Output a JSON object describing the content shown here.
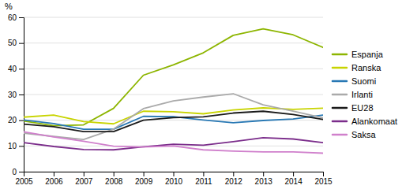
{
  "chart_data": {
    "type": "line",
    "y_label": "%",
    "x": [
      2005,
      2006,
      2007,
      2008,
      2009,
      2010,
      2011,
      2012,
      2013,
      2014,
      2015
    ],
    "series": [
      {
        "name": "Espanja",
        "color": "#8db500",
        "values": [
          19.7,
          17.9,
          18.2,
          24.6,
          37.5,
          41.5,
          46.2,
          53.0,
          55.5,
          53.2,
          48.3
        ]
      },
      {
        "name": "Ranska",
        "color": "#c8d400",
        "values": [
          21.2,
          22.0,
          19.5,
          18.6,
          23.5,
          23.3,
          22.5,
          24.0,
          24.8,
          24.2,
          24.7
        ]
      },
      {
        "name": "Suomi",
        "color": "#2878b4",
        "values": [
          20.1,
          18.7,
          16.5,
          16.5,
          21.5,
          21.4,
          20.1,
          19.0,
          19.9,
          20.5,
          22.0
        ]
      },
      {
        "name": "Irlanti",
        "color": "#aaaaaa",
        "values": [
          15.0,
          13.7,
          12.5,
          16.5,
          24.5,
          27.5,
          29.0,
          30.3,
          26.0,
          23.5,
          20.9
        ]
      },
      {
        "name": "EU28",
        "color": "#1a1a1a",
        "values": [
          18.5,
          17.5,
          15.6,
          15.6,
          20.0,
          21.0,
          21.3,
          22.8,
          23.5,
          22.2,
          20.3
        ]
      },
      {
        "name": "Alankomaat",
        "color": "#7b2d8b",
        "values": [
          11.3,
          9.8,
          8.6,
          8.5,
          9.7,
          10.7,
          10.3,
          11.7,
          13.2,
          12.7,
          11.3
        ]
      },
      {
        "name": "Saksa",
        "color": "#d080cc",
        "values": [
          15.5,
          13.5,
          11.8,
          9.9,
          9.6,
          10.0,
          8.5,
          8.0,
          7.7,
          7.7,
          7.2
        ]
      }
    ],
    "xlim": [
      2005,
      2015
    ],
    "xticks": [
      2005,
      2006,
      2007,
      2008,
      2009,
      2010,
      2011,
      2012,
      2013,
      2014,
      2015
    ],
    "ylim": [
      0,
      60
    ],
    "yticks": [
      0,
      10,
      20,
      30,
      40,
      50,
      60
    ],
    "grid": "y",
    "legend": "right"
  }
}
